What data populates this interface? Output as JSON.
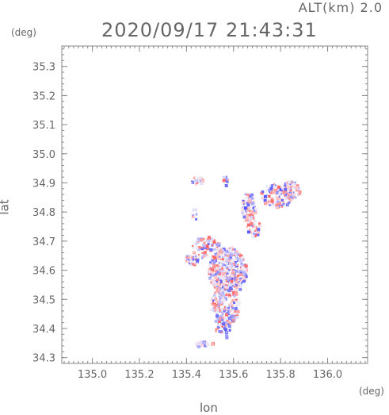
{
  "header": {
    "altitude_label": "ALT(km) 2.0",
    "timestamp": "2020/09/17 21:43:31"
  },
  "axes": {
    "x_unit": "(deg)",
    "y_unit": "(deg)",
    "x_label": "lon",
    "y_label": "lat"
  },
  "chart_data": {
    "type": "heatmap",
    "xlabel": "lon",
    "ylabel": "lat",
    "xlim": [
      134.87,
      136.17
    ],
    "ylim": [
      34.28,
      35.37
    ],
    "x_ticks": [
      135.0,
      135.2,
      135.4,
      135.6,
      135.8,
      136.0
    ],
    "x_tick_labels": [
      "135.0",
      "135.2",
      "135.4",
      "135.6",
      "135.8",
      "136.0"
    ],
    "y_ticks": [
      34.3,
      34.4,
      34.5,
      34.6,
      34.7,
      34.8,
      34.9,
      35.0,
      35.1,
      35.2,
      35.3
    ],
    "y_tick_labels": [
      "34.3",
      "34.4",
      "34.5",
      "34.6",
      "34.7",
      "34.8",
      "34.9",
      "35.0",
      "35.1",
      "35.2",
      "35.3"
    ],
    "colors": {
      "positive": "#ff5a5a",
      "negative": "#5a5aff"
    },
    "clusters": [
      {
        "lon": 135.57,
        "lat": 34.6,
        "rlon": 0.08,
        "rlat": 0.085,
        "n": 520
      },
      {
        "lon": 135.56,
        "lat": 34.48,
        "rlon": 0.06,
        "rlat": 0.07,
        "n": 220
      },
      {
        "lon": 135.48,
        "lat": 34.68,
        "rlon": 0.06,
        "rlat": 0.04,
        "n": 90
      },
      {
        "lon": 135.42,
        "lat": 34.64,
        "rlon": 0.03,
        "rlat": 0.02,
        "n": 40
      },
      {
        "lon": 135.66,
        "lat": 34.82,
        "rlon": 0.03,
        "rlat": 0.05,
        "n": 90
      },
      {
        "lon": 135.78,
        "lat": 34.86,
        "rlon": 0.07,
        "rlat": 0.04,
        "n": 150
      },
      {
        "lon": 135.84,
        "lat": 34.88,
        "rlon": 0.04,
        "rlat": 0.03,
        "n": 60
      },
      {
        "lon": 135.68,
        "lat": 34.75,
        "rlon": 0.03,
        "rlat": 0.03,
        "n": 40
      },
      {
        "lon": 135.44,
        "lat": 34.91,
        "rlon": 0.025,
        "rlat": 0.015,
        "n": 25
      },
      {
        "lon": 135.56,
        "lat": 34.91,
        "rlon": 0.01,
        "rlat": 0.02,
        "n": 12
      },
      {
        "lon": 135.47,
        "lat": 34.35,
        "rlon": 0.04,
        "rlat": 0.01,
        "n": 30
      },
      {
        "lon": 135.43,
        "lat": 34.8,
        "rlon": 0.01,
        "rlat": 0.03,
        "n": 10
      },
      {
        "lon": 135.55,
        "lat": 34.4,
        "rlon": 0.03,
        "rlat": 0.03,
        "n": 30
      }
    ]
  }
}
